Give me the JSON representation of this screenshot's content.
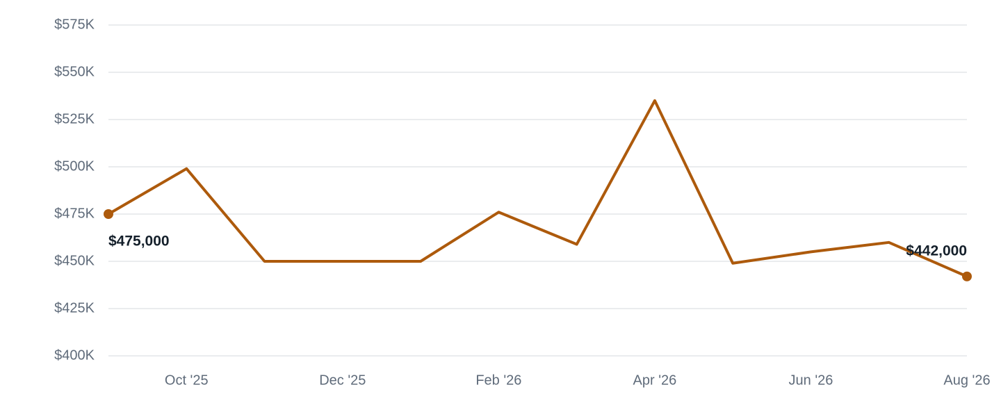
{
  "chart_data": {
    "type": "line",
    "categories": [
      null,
      "Oct '25",
      null,
      "Dec '25",
      null,
      "Feb '26",
      null,
      "Apr '26",
      null,
      "Jun '26",
      null,
      "Aug '26"
    ],
    "values": [
      475000,
      499000,
      450000,
      450000,
      450000,
      476000,
      459000,
      535000,
      449000,
      455000,
      460000,
      442000
    ],
    "value_labels": [
      "$475,000",
      null,
      null,
      null,
      null,
      null,
      null,
      null,
      null,
      null,
      null,
      "$442,000"
    ],
    "color": "#ad5a0c",
    "ylim": [
      400000,
      575000
    ],
    "yticks": [
      {
        "value": 400000,
        "label": "$400K"
      },
      {
        "value": 425000,
        "label": "$425K"
      },
      {
        "value": 450000,
        "label": "$450K"
      },
      {
        "value": 475000,
        "label": "$475K"
      },
      {
        "value": 500000,
        "label": "$500K"
      },
      {
        "value": 525000,
        "label": "$525K"
      },
      {
        "value": 550000,
        "label": "$550K"
      },
      {
        "value": 575000,
        "label": "$575K"
      }
    ],
    "grid": true
  }
}
